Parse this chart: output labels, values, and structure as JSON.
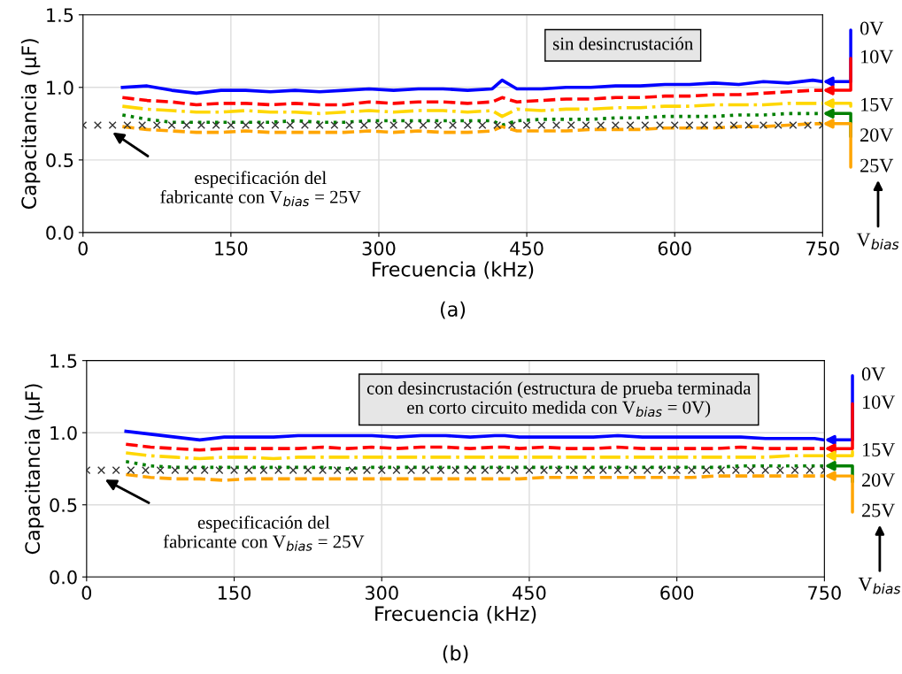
{
  "chart_data": [
    {
      "type": "line",
      "xlabel": "Frecuencia (kHz)",
      "ylabel": "Capacitancia (µF)",
      "xlim": [
        0,
        750
      ],
      "ylim": [
        0,
        1.5
      ],
      "xticks": [
        0,
        150,
        300,
        450,
        600,
        750
      ],
      "yticks": [
        {
          "value": 0,
          "label": "0.0"
        },
        {
          "value": 0.5,
          "label": "0.5"
        },
        {
          "value": 1.0,
          "label": "1.0"
        },
        {
          "value": 1.5,
          "label": "1.5"
        }
      ],
      "grid": true,
      "legend": "right",
      "legend_title": "V$_{bias}$",
      "x": [
        40,
        65,
        90,
        115,
        140,
        165,
        190,
        215,
        240,
        265,
        290,
        315,
        340,
        365,
        390,
        415,
        425,
        440,
        465,
        490,
        515,
        540,
        565,
        590,
        615,
        640,
        665,
        690,
        715,
        740,
        750
      ],
      "series": [
        {
          "name": "0V",
          "color": "#0000ff",
          "line_style": "solid",
          "values": [
            1.0,
            1.01,
            0.98,
            0.96,
            0.98,
            0.98,
            0.97,
            0.98,
            0.97,
            0.98,
            0.99,
            0.98,
            0.99,
            0.99,
            0.98,
            0.99,
            1.05,
            0.99,
            0.99,
            1.0,
            1.0,
            1.01,
            1.01,
            1.02,
            1.02,
            1.03,
            1.02,
            1.04,
            1.03,
            1.05,
            1.04
          ]
        },
        {
          "name": "10V",
          "color": "#ff0000",
          "line_style": "dashed",
          "values": [
            0.93,
            0.91,
            0.9,
            0.88,
            0.89,
            0.89,
            0.88,
            0.89,
            0.88,
            0.88,
            0.9,
            0.89,
            0.9,
            0.9,
            0.89,
            0.9,
            0.93,
            0.9,
            0.91,
            0.92,
            0.92,
            0.93,
            0.93,
            0.94,
            0.94,
            0.95,
            0.95,
            0.96,
            0.97,
            0.98,
            0.98
          ]
        },
        {
          "name": "15V",
          "color": "#ffd700",
          "line_style": "dashdot",
          "values": [
            0.87,
            0.85,
            0.84,
            0.83,
            0.83,
            0.84,
            0.83,
            0.83,
            0.82,
            0.83,
            0.84,
            0.83,
            0.84,
            0.84,
            0.83,
            0.84,
            0.8,
            0.85,
            0.84,
            0.85,
            0.85,
            0.86,
            0.86,
            0.87,
            0.87,
            0.88,
            0.88,
            0.88,
            0.89,
            0.89,
            0.89
          ]
        },
        {
          "name": "20V",
          "color": "#008000",
          "line_style": "dotted",
          "values": [
            0.81,
            0.78,
            0.76,
            0.76,
            0.76,
            0.76,
            0.76,
            0.77,
            0.76,
            0.76,
            0.77,
            0.77,
            0.77,
            0.77,
            0.77,
            0.77,
            0.74,
            0.77,
            0.78,
            0.78,
            0.78,
            0.79,
            0.79,
            0.8,
            0.8,
            0.8,
            0.81,
            0.81,
            0.82,
            0.82,
            0.82
          ]
        },
        {
          "name": "25V",
          "color": "#ffa500",
          "line_style": "dashed",
          "values": [
            0.73,
            0.71,
            0.7,
            0.69,
            0.69,
            0.7,
            0.69,
            0.69,
            0.69,
            0.69,
            0.7,
            0.69,
            0.7,
            0.69,
            0.69,
            0.7,
            0.73,
            0.7,
            0.7,
            0.7,
            0.71,
            0.71,
            0.71,
            0.72,
            0.72,
            0.72,
            0.73,
            0.73,
            0.74,
            0.75,
            0.75
          ]
        },
        {
          "type": "scatter",
          "marker": "cross",
          "color": "#333333",
          "x": [
            0,
            15,
            30,
            45,
            60,
            75,
            90,
            105,
            120,
            135,
            150,
            165,
            180,
            195,
            210,
            225,
            240,
            255,
            270,
            285,
            300,
            315,
            330,
            345,
            360,
            375,
            390,
            405,
            420,
            435,
            450,
            465,
            480,
            495,
            510,
            525,
            540,
            555,
            570,
            585,
            600,
            615,
            630,
            645,
            660,
            675,
            690,
            705,
            720,
            735,
            750
          ],
          "values": [
            0.74,
            0.74,
            0.74,
            0.74,
            0.74,
            0.74,
            0.74,
            0.74,
            0.74,
            0.74,
            0.74,
            0.74,
            0.74,
            0.74,
            0.74,
            0.74,
            0.74,
            0.74,
            0.74,
            0.74,
            0.74,
            0.74,
            0.74,
            0.74,
            0.74,
            0.74,
            0.74,
            0.74,
            0.74,
            0.74,
            0.74,
            0.74,
            0.74,
            0.74,
            0.74,
            0.74,
            0.74,
            0.74,
            0.74,
            0.74,
            0.74,
            0.74,
            0.74,
            0.74,
            0.74,
            0.74,
            0.74,
            0.74,
            0.74,
            0.74,
            0.74
          ]
        }
      ],
      "annotations": [
        "sin desincrustación",
        "especificación del\nfabricante con V$_{bias}$ = 25V",
        "(a)"
      ]
    },
    {
      "type": "line",
      "xlabel": "Frecuencia (kHz)",
      "ylabel": "Capacitancia (µF)",
      "xlim": [
        0,
        750
      ],
      "ylim": [
        0,
        1.5
      ],
      "xticks": [
        0,
        150,
        300,
        450,
        600,
        750
      ],
      "yticks": [
        {
          "value": 0,
          "label": "0.0"
        },
        {
          "value": 0.5,
          "label": "0.5"
        },
        {
          "value": 1.0,
          "label": "1.0"
        },
        {
          "value": 1.5,
          "label": "1.5"
        }
      ],
      "grid": true,
      "legend": "right",
      "legend_title": "V$_{bias}$",
      "x": [
        40,
        65,
        90,
        115,
        140,
        165,
        190,
        215,
        240,
        265,
        290,
        315,
        340,
        365,
        390,
        415,
        425,
        440,
        465,
        490,
        515,
        540,
        565,
        590,
        615,
        640,
        665,
        690,
        715,
        740,
        750
      ],
      "series": [
        {
          "name": "0V",
          "color": "#0000ff",
          "line_style": "solid",
          "values": [
            1.01,
            0.99,
            0.97,
            0.95,
            0.97,
            0.97,
            0.97,
            0.98,
            0.98,
            0.98,
            0.98,
            0.97,
            0.98,
            0.98,
            0.97,
            0.98,
            0.98,
            0.97,
            0.97,
            0.97,
            0.97,
            0.98,
            0.97,
            0.97,
            0.97,
            0.97,
            0.97,
            0.96,
            0.96,
            0.96,
            0.95
          ]
        },
        {
          "name": "10V",
          "color": "#ff0000",
          "line_style": "dashed",
          "values": [
            0.92,
            0.9,
            0.89,
            0.88,
            0.89,
            0.89,
            0.89,
            0.89,
            0.9,
            0.89,
            0.9,
            0.89,
            0.9,
            0.9,
            0.89,
            0.9,
            0.9,
            0.89,
            0.9,
            0.89,
            0.89,
            0.9,
            0.89,
            0.89,
            0.89,
            0.89,
            0.9,
            0.89,
            0.89,
            0.89,
            0.89
          ]
        },
        {
          "name": "15V",
          "color": "#ffd700",
          "line_style": "dashdot",
          "values": [
            0.86,
            0.84,
            0.83,
            0.82,
            0.83,
            0.83,
            0.82,
            0.83,
            0.83,
            0.83,
            0.83,
            0.83,
            0.83,
            0.83,
            0.83,
            0.83,
            0.83,
            0.83,
            0.83,
            0.83,
            0.83,
            0.83,
            0.83,
            0.83,
            0.83,
            0.83,
            0.83,
            0.83,
            0.84,
            0.84,
            0.84
          ]
        },
        {
          "name": "20V",
          "color": "#008000",
          "line_style": "dotted",
          "values": [
            0.8,
            0.77,
            0.76,
            0.76,
            0.76,
            0.76,
            0.76,
            0.76,
            0.76,
            0.75,
            0.76,
            0.76,
            0.76,
            0.76,
            0.76,
            0.76,
            0.76,
            0.76,
            0.76,
            0.76,
            0.76,
            0.76,
            0.76,
            0.76,
            0.76,
            0.76,
            0.77,
            0.77,
            0.77,
            0.77,
            0.77
          ]
        },
        {
          "name": "25V",
          "color": "#ffa500",
          "line_style": "dashed",
          "values": [
            0.71,
            0.69,
            0.68,
            0.68,
            0.67,
            0.68,
            0.68,
            0.68,
            0.68,
            0.68,
            0.68,
            0.68,
            0.68,
            0.68,
            0.68,
            0.68,
            0.68,
            0.68,
            0.69,
            0.69,
            0.69,
            0.69,
            0.69,
            0.69,
            0.69,
            0.7,
            0.7,
            0.7,
            0.7,
            0.7,
            0.7
          ]
        },
        {
          "type": "scatter",
          "marker": "cross",
          "color": "#333333",
          "x": [
            0,
            15,
            30,
            45,
            60,
            75,
            90,
            105,
            120,
            135,
            150,
            165,
            180,
            195,
            210,
            225,
            240,
            255,
            270,
            285,
            300,
            315,
            330,
            345,
            360,
            375,
            390,
            405,
            420,
            435,
            450,
            465,
            480,
            495,
            510,
            525,
            540,
            555,
            570,
            585,
            600,
            615,
            630,
            645,
            660,
            675,
            690,
            705,
            720,
            735,
            750
          ],
          "values": [
            0.74,
            0.74,
            0.74,
            0.74,
            0.74,
            0.74,
            0.74,
            0.74,
            0.74,
            0.74,
            0.74,
            0.74,
            0.74,
            0.74,
            0.74,
            0.74,
            0.74,
            0.74,
            0.74,
            0.74,
            0.74,
            0.74,
            0.74,
            0.74,
            0.74,
            0.74,
            0.74,
            0.74,
            0.74,
            0.74,
            0.74,
            0.74,
            0.74,
            0.74,
            0.74,
            0.74,
            0.74,
            0.74,
            0.74,
            0.74,
            0.74,
            0.74,
            0.74,
            0.74,
            0.74,
            0.74,
            0.74,
            0.74,
            0.74,
            0.74,
            0.74
          ]
        }
      ],
      "annotations": [
        "con desincrustación (estructura de prueba terminada\nen corto circuito medida con V$_{bias}$ = 0V)",
        "especificación del\nfabricante con V$_{bias}$ = 25V",
        "(b)"
      ]
    }
  ]
}
